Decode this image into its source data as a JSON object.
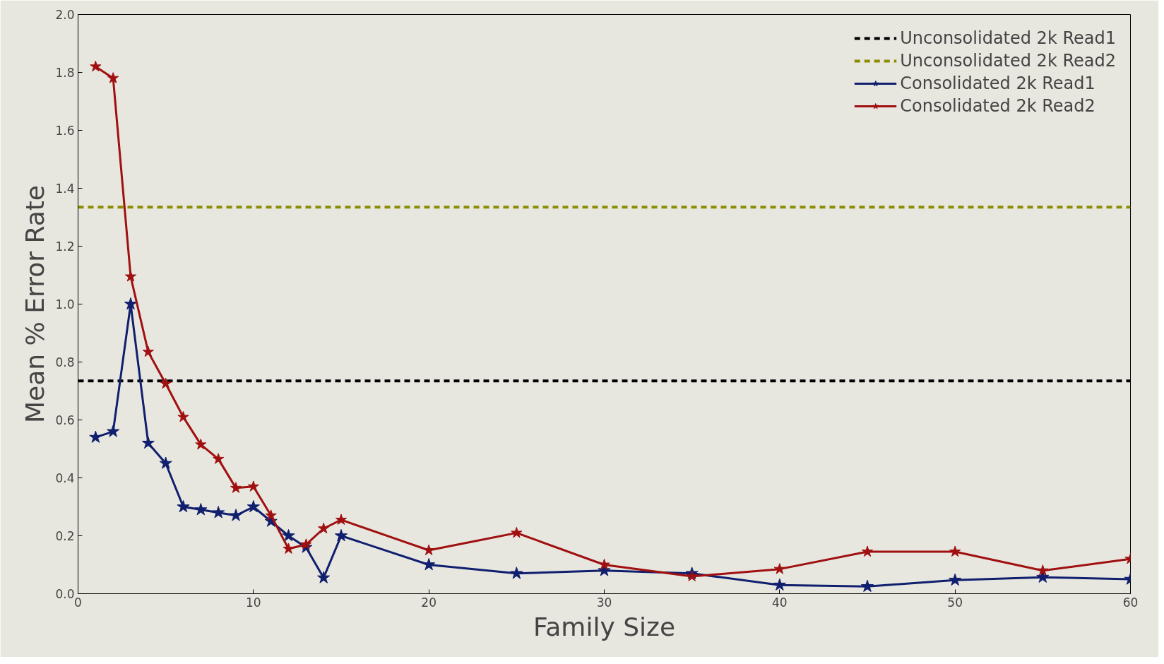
{
  "chart_data": {
    "type": "line",
    "xlabel": "Family Size",
    "ylabel": "Mean % Error Rate",
    "series": [
      {
        "name": "Unconsolidated 2k Read1",
        "color": "#000000",
        "line_style": "dashed",
        "marker": "none",
        "x": [
          0,
          60
        ],
        "values": [
          0.735,
          0.735
        ]
      },
      {
        "name": "Unconsolidated 2k Read2",
        "color": "#8c8c00",
        "line_style": "dashed",
        "marker": "none",
        "x": [
          0,
          60
        ],
        "values": [
          1.335,
          1.335
        ]
      },
      {
        "name": "Consolidated 2k Read1",
        "color": "#101f6e",
        "line_style": "solid",
        "marker": "star",
        "x": [
          1,
          2,
          3,
          4,
          5,
          6,
          7,
          8,
          9,
          10,
          11,
          12,
          13,
          14,
          15,
          20,
          25,
          30,
          35,
          40,
          45,
          50,
          55,
          60
        ],
        "values": [
          0.54,
          0.56,
          1.0,
          0.52,
          0.45,
          0.3,
          0.29,
          0.28,
          0.27,
          0.3,
          0.25,
          0.2,
          0.16,
          0.055,
          0.2,
          0.1,
          0.07,
          0.08,
          0.07,
          0.03,
          0.025,
          0.047,
          0.057,
          0.05
        ]
      },
      {
        "name": "Consolidated 2k Read2",
        "color": "#a01010",
        "line_style": "solid",
        "marker": "star",
        "x": [
          1,
          2,
          3,
          4,
          5,
          6,
          7,
          8,
          9,
          10,
          11,
          12,
          13,
          14,
          15,
          20,
          25,
          30,
          35,
          40,
          45,
          50,
          55,
          60
        ],
        "values": [
          1.82,
          1.78,
          1.095,
          0.835,
          0.725,
          0.61,
          0.515,
          0.465,
          0.365,
          0.37,
          0.27,
          0.155,
          0.17,
          0.225,
          0.255,
          0.15,
          0.21,
          0.1,
          0.06,
          0.085,
          0.145,
          0.145,
          0.08,
          0.12
        ]
      }
    ],
    "xlim": [
      0,
      60
    ],
    "ylim": [
      0,
      2.0
    ],
    "xticks": [
      0,
      10,
      20,
      30,
      40,
      50,
      60
    ],
    "yticks": [
      {
        "value": 0,
        "label": "0.0"
      },
      {
        "value": 0.2,
        "label": "0.2"
      },
      {
        "value": 0.4,
        "label": "0.4"
      },
      {
        "value": 0.6,
        "label": "0.6"
      },
      {
        "value": 0.8,
        "label": "0.8"
      },
      {
        "value": 1.0,
        "label": "1.0"
      },
      {
        "value": 1.2,
        "label": "1.2"
      },
      {
        "value": 1.4,
        "label": "1.4"
      },
      {
        "value": 1.6,
        "label": "1.6"
      },
      {
        "value": 1.8,
        "label": "1.8"
      },
      {
        "value": 2.0,
        "label": "2.0"
      }
    ],
    "grid": false,
    "legend": "top right"
  }
}
